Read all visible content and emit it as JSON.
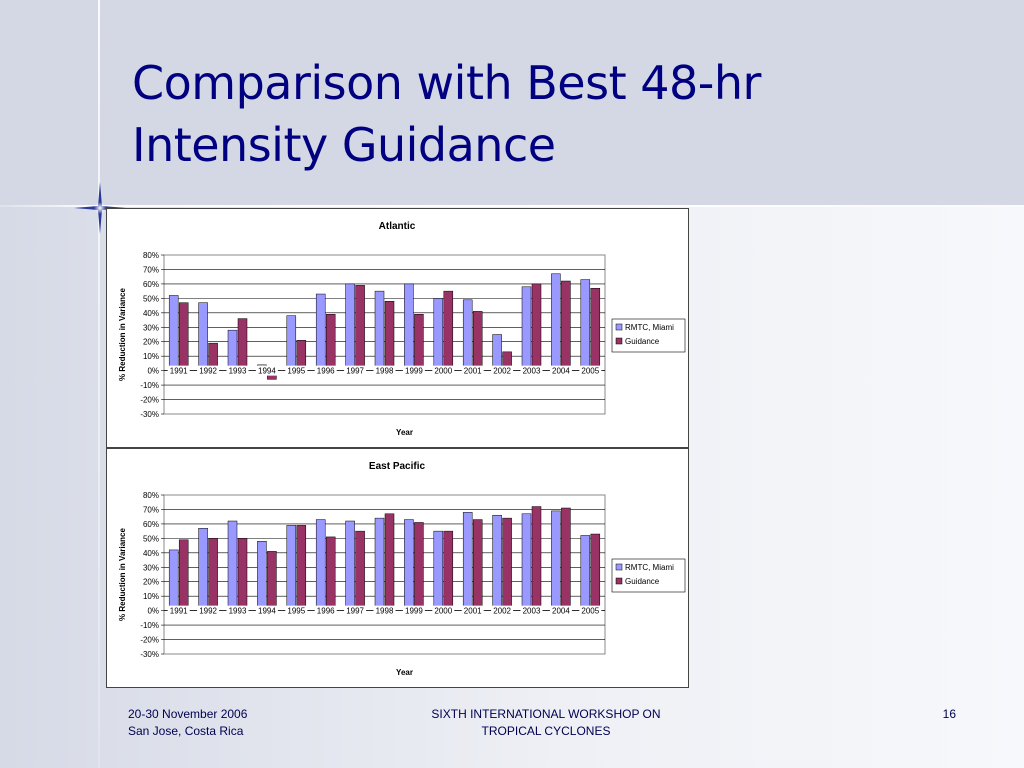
{
  "slide": {
    "title_line1": "Comparison with Best 48-hr",
    "title_line2": "Intensity Guidance",
    "footer": {
      "date": "20-30 November 2006",
      "location": "San Jose, Costa Rica",
      "event_line1": "SIXTH INTERNATIONAL WORKSHOP ON",
      "event_line2": "TROPICAL CYCLONES",
      "page_number": "16"
    },
    "colors": {
      "title": "#000080",
      "series_rmtc": "#9999ff",
      "series_guidance": "#993366"
    }
  },
  "chart_data": [
    {
      "type": "bar",
      "title": "Atlantic",
      "xlabel": "Year",
      "ylabel": "% Reduction in Variance",
      "categories": [
        "1991",
        "1992",
        "1993",
        "1994",
        "1995",
        "1996",
        "1997",
        "1998",
        "1999",
        "2000",
        "2001",
        "2002",
        "2003",
        "2004",
        "2005"
      ],
      "series": [
        {
          "name": "RMTC, Miami",
          "color": "#9999ff",
          "values": [
            52,
            47,
            28,
            4,
            38,
            53,
            60,
            55,
            60,
            50,
            49,
            25,
            58,
            67,
            63
          ]
        },
        {
          "name": "Guidance",
          "color": "#993366",
          "values": [
            47,
            19,
            36,
            -6,
            21,
            39,
            59,
            48,
            39,
            55,
            41,
            13,
            60,
            62,
            57
          ]
        }
      ],
      "ylim": [
        -30,
        80
      ],
      "yticks": [
        "80%",
        "70%",
        "60%",
        "50%",
        "40%",
        "30%",
        "20%",
        "10%",
        "0%",
        "-10%",
        "-20%",
        "-30%"
      ],
      "grid": true,
      "legend": "right"
    },
    {
      "type": "bar",
      "title": "East Pacific",
      "xlabel": "Year",
      "ylabel": "% Reduction in Variance",
      "categories": [
        "1991",
        "1992",
        "1993",
        "1994",
        "1995",
        "1996",
        "1997",
        "1998",
        "1999",
        "2000",
        "2001",
        "2002",
        "2003",
        "2004",
        "2005"
      ],
      "series": [
        {
          "name": "RMTC, Miami",
          "color": "#9999ff",
          "values": [
            42,
            57,
            62,
            48,
            59,
            63,
            62,
            64,
            63,
            55,
            68,
            66,
            67,
            69,
            52
          ]
        },
        {
          "name": "Guidance",
          "color": "#993366",
          "values": [
            49,
            50,
            50,
            41,
            59,
            51,
            55,
            67,
            61,
            55,
            63,
            64,
            72,
            71,
            53
          ]
        }
      ],
      "ylim": [
        -30,
        80
      ],
      "yticks": [
        "80%",
        "70%",
        "60%",
        "50%",
        "40%",
        "30%",
        "20%",
        "10%",
        "0%",
        "-10%",
        "-20%",
        "-30%"
      ],
      "grid": true,
      "legend": "right"
    }
  ]
}
